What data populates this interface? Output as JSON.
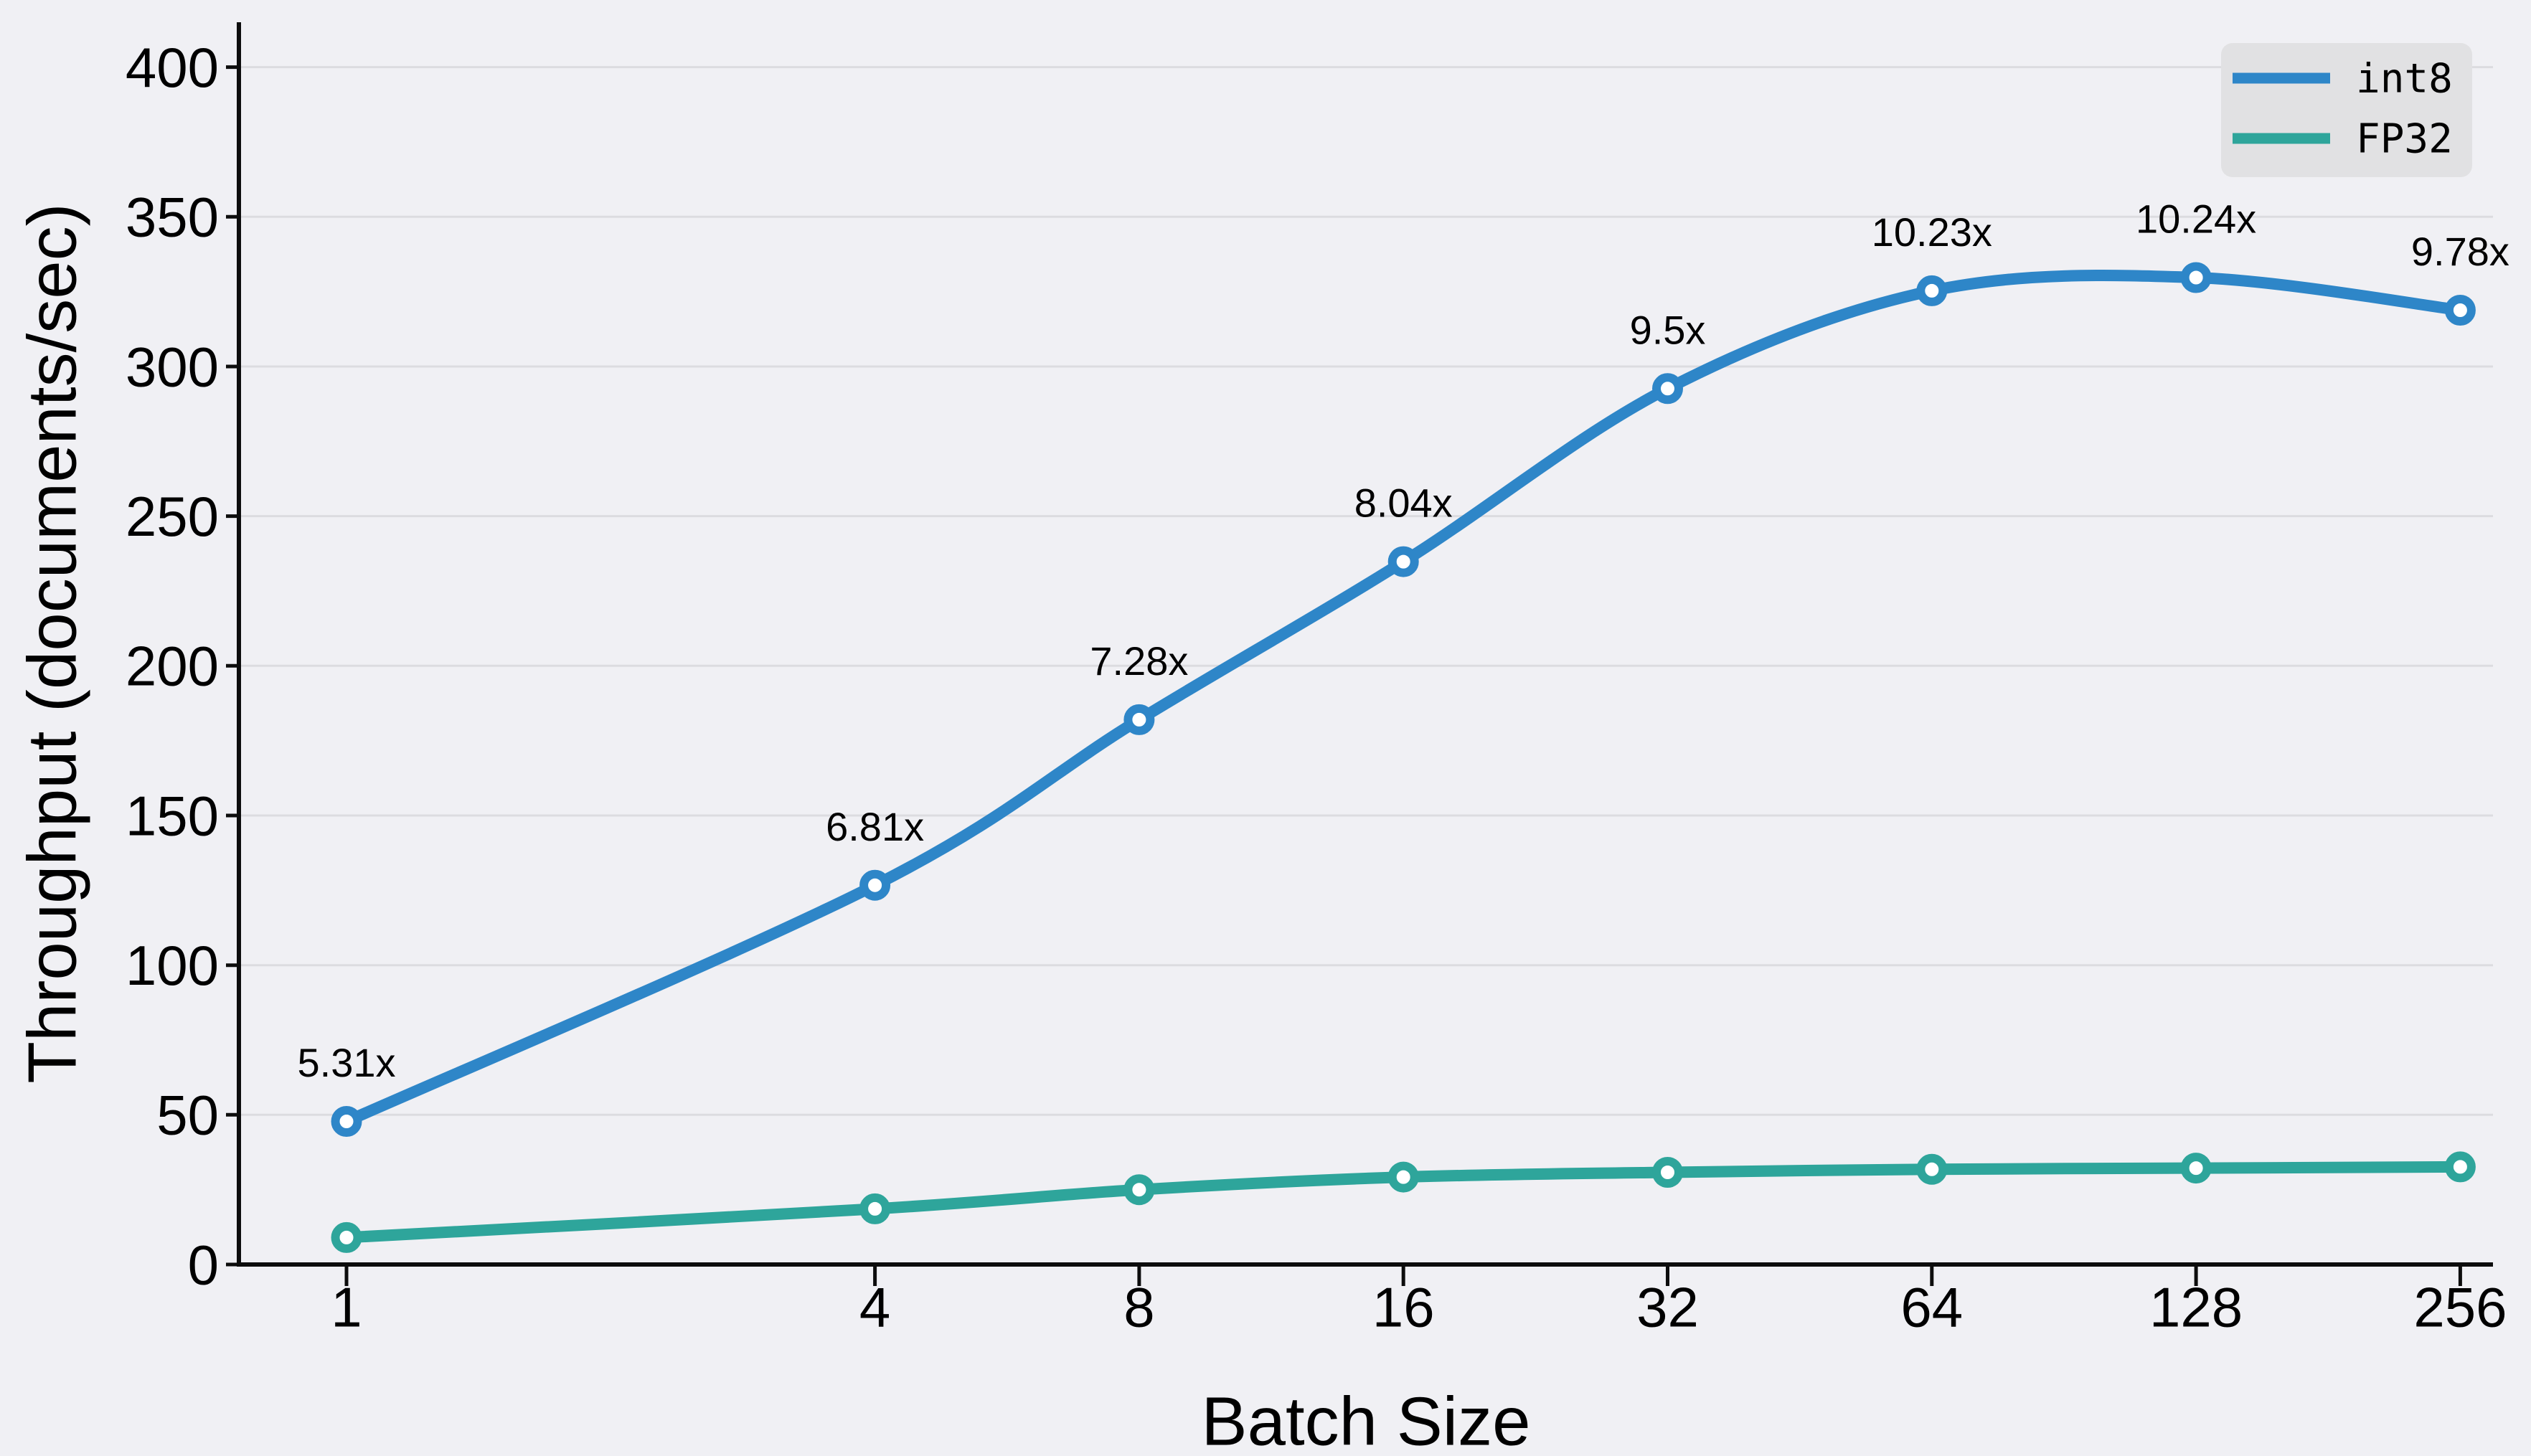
{
  "figure": {
    "background": "#F0F0F4",
    "grid_color": "#DCDCE0",
    "spine_color": "#0D0D0D",
    "text_color": "#000000"
  },
  "chart_data": {
    "type": "line",
    "title": "",
    "xlabel": "Batch Size",
    "ylabel": "Throughput (documents/sec)",
    "x_scale": "log2",
    "categories": [
      1,
      4,
      8,
      16,
      32,
      64,
      128,
      256
    ],
    "x_tick_labels": [
      "1",
      "4",
      "8",
      "16",
      "32",
      "64",
      "128",
      "256"
    ],
    "y_ticks": [
      0,
      50,
      100,
      150,
      200,
      250,
      300,
      350,
      400
    ],
    "y_tick_labels": [
      "0",
      "50",
      "100",
      "150",
      "200",
      "250",
      "300",
      "350",
      "400"
    ],
    "ylim": [
      0,
      415
    ],
    "grid": "horizontal",
    "series": [
      {
        "name": "int8",
        "color": "#2E86C8",
        "values": [
          47.8,
          126.7,
          182.0,
          234.8,
          292.6,
          325.3,
          329.7,
          318.8
        ],
        "point_labels": [
          "5.31x",
          "6.81x",
          "7.28x",
          "8.04x",
          "9.5x",
          "10.23x",
          "10.24x",
          "9.78x"
        ]
      },
      {
        "name": "FP32",
        "color": "#2EA59B",
        "values": [
          9.0,
          18.6,
          25.0,
          29.2,
          30.8,
          31.8,
          32.2,
          32.6
        ],
        "point_labels": []
      }
    ],
    "legend": {
      "position": "upper right",
      "background": "#E1E1E3",
      "entries": [
        "int8",
        "FP32"
      ]
    }
  }
}
